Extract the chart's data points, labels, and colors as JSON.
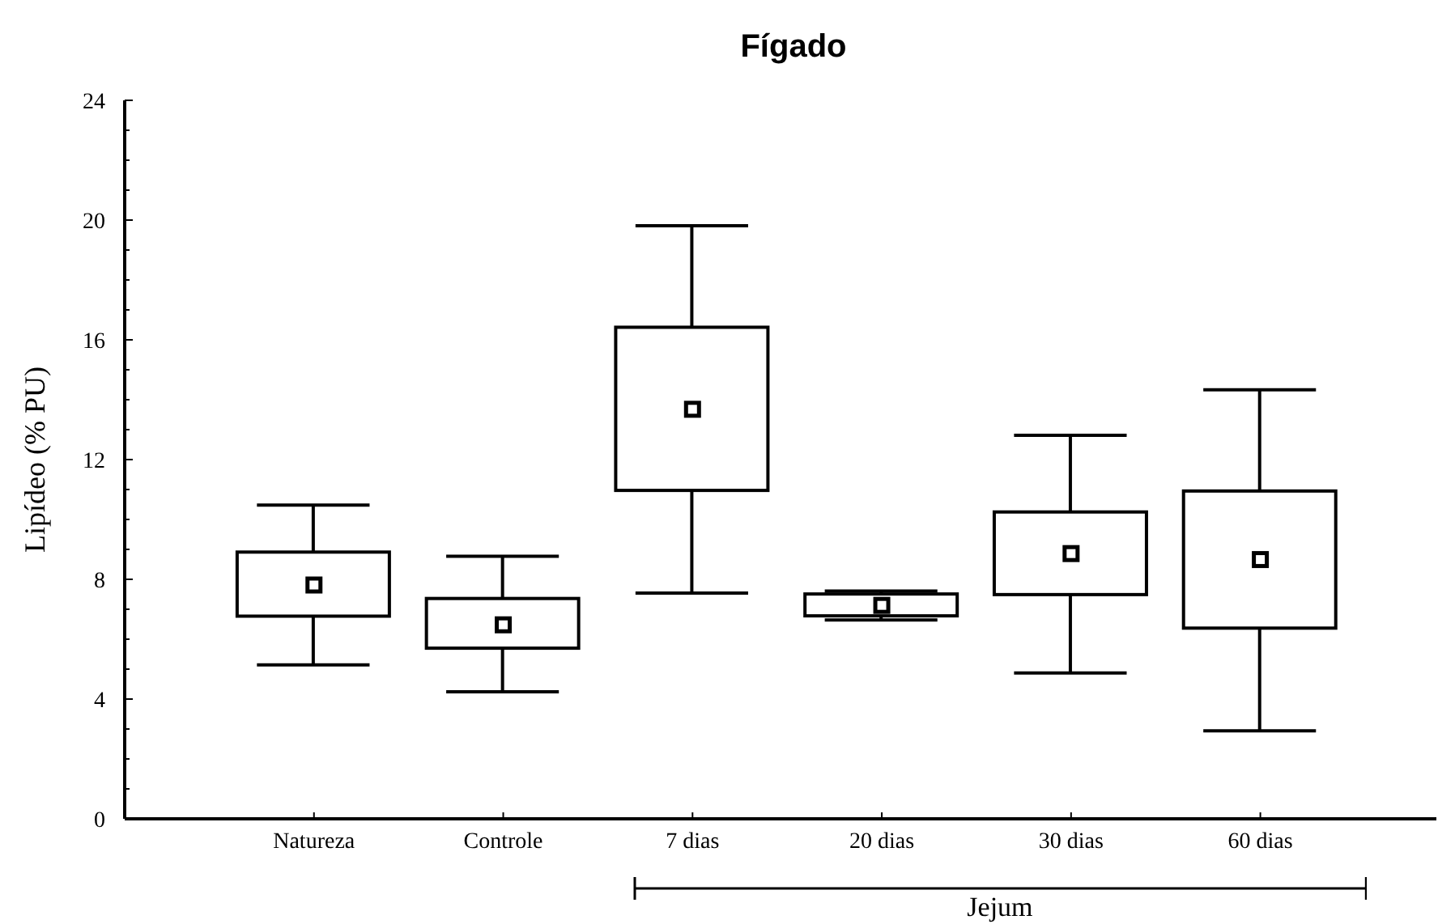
{
  "chart_data": {
    "type": "box",
    "title": "Fígado",
    "ylabel": "Lipídeo (% PU)",
    "color": "#000000",
    "categories": [
      "Natureza",
      "Controle",
      "7 dias",
      "20 dias",
      "30 dias",
      "60 dias"
    ],
    "boxes": [
      {
        "low": 5.14,
        "q1": 6.77,
        "median": 7.81,
        "q3": 8.91,
        "high": 10.48
      },
      {
        "low": 4.24,
        "q1": 5.7,
        "median": 6.48,
        "q3": 7.36,
        "high": 8.77
      },
      {
        "low": 7.54,
        "q1": 10.97,
        "median": 13.68,
        "q3": 16.42,
        "high": 19.81
      },
      {
        "low": 6.64,
        "q1": 6.78,
        "median": 7.13,
        "q3": 7.51,
        "high": 7.61
      },
      {
        "low": 4.87,
        "q1": 7.49,
        "median": 8.86,
        "q3": 10.25,
        "high": 12.81
      },
      {
        "low": 2.94,
        "q1": 6.37,
        "median": 8.66,
        "q3": 10.95,
        "high": 14.33
      }
    ],
    "ylim": [
      0,
      24
    ],
    "yticks": [
      0,
      {
        "value": 1,
        "label": null
      },
      {
        "value": 2,
        "label": null
      },
      {
        "value": 3,
        "label": null
      },
      4,
      {
        "value": 5,
        "label": null
      },
      {
        "value": 6,
        "label": null
      },
      {
        "value": 7,
        "label": null
      },
      8,
      {
        "value": 9,
        "label": null
      },
      {
        "value": 10,
        "label": null
      },
      {
        "value": 11,
        "label": null
      },
      12,
      {
        "value": 13,
        "label": null
      },
      {
        "value": 14,
        "label": null
      },
      {
        "value": 15,
        "label": null
      },
      16,
      {
        "value": 17,
        "label": null
      },
      {
        "value": 18,
        "label": null
      },
      {
        "value": 19,
        "label": null
      },
      20,
      {
        "value": 21,
        "label": null
      },
      {
        "value": 22,
        "label": null
      },
      {
        "value": 23,
        "label": null
      },
      24
    ],
    "annotations": [
      "Jejum"
    ]
  }
}
